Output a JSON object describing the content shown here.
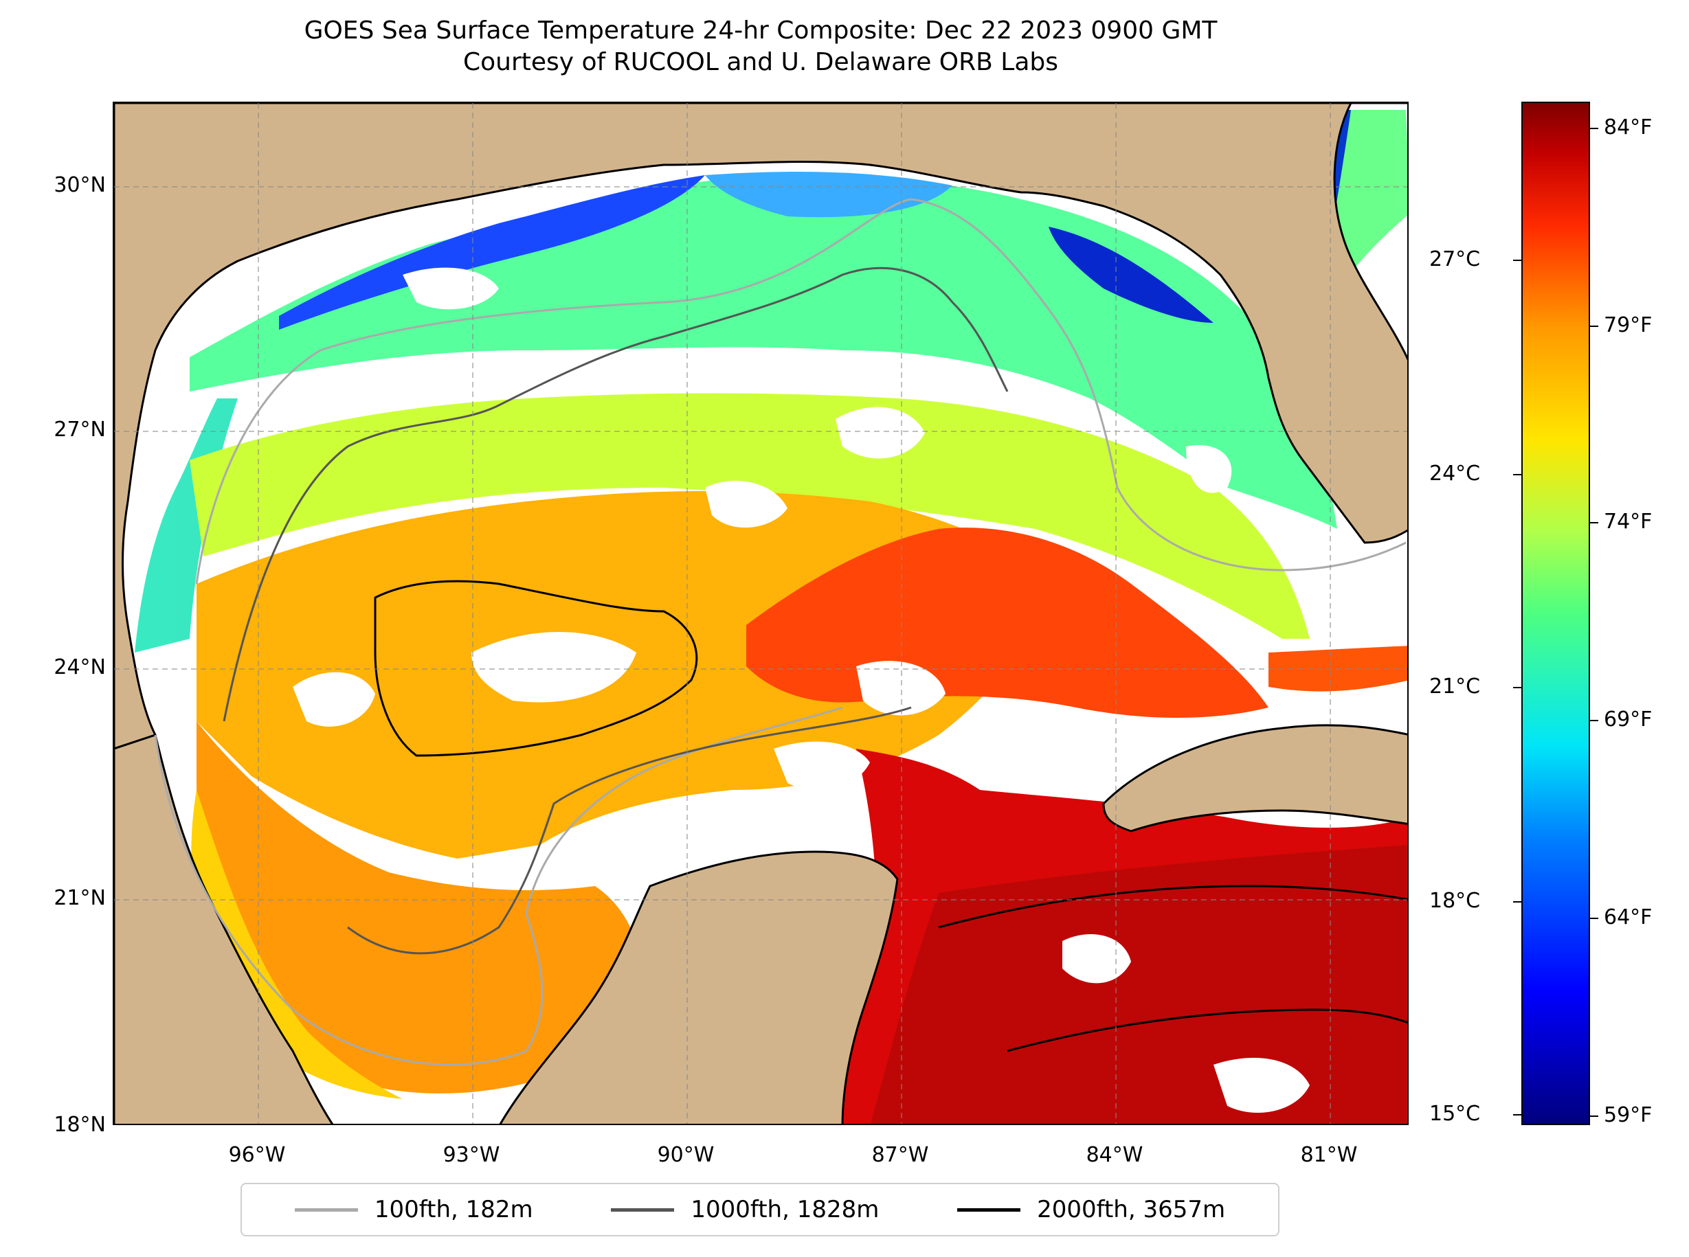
{
  "title": {
    "line1": "GOES Sea Surface Temperature 24-hr Composite: Dec 22 2023 0900 GMT",
    "line2": "Courtesy of RUCOOL and U. Delaware ORB Labs"
  },
  "map": {
    "lat_labels": [
      "30°N",
      "27°N",
      "24°N",
      "21°N",
      "18°N"
    ],
    "lon_labels": [
      "96°W",
      "93°W",
      "90°W",
      "87°W",
      "84°W",
      "81°W"
    ],
    "land_color": "#d2b48c",
    "gridlines": "dashed"
  },
  "colorbar": {
    "celsius_labels": [
      "27°C",
      "24°C",
      "21°C",
      "18°C",
      "15°C"
    ],
    "fahrenheit_labels": [
      "84°F",
      "79°F",
      "74°F",
      "69°F",
      "64°F",
      "59°F"
    ],
    "colormap": "jet"
  },
  "legend": {
    "items": [
      {
        "label": "100fth, 182m",
        "color": "#aaaaaa"
      },
      {
        "label": "1000fth, 1828m",
        "color": "#555555"
      },
      {
        "label": "2000fth, 3657m",
        "color": "#000000"
      }
    ]
  }
}
